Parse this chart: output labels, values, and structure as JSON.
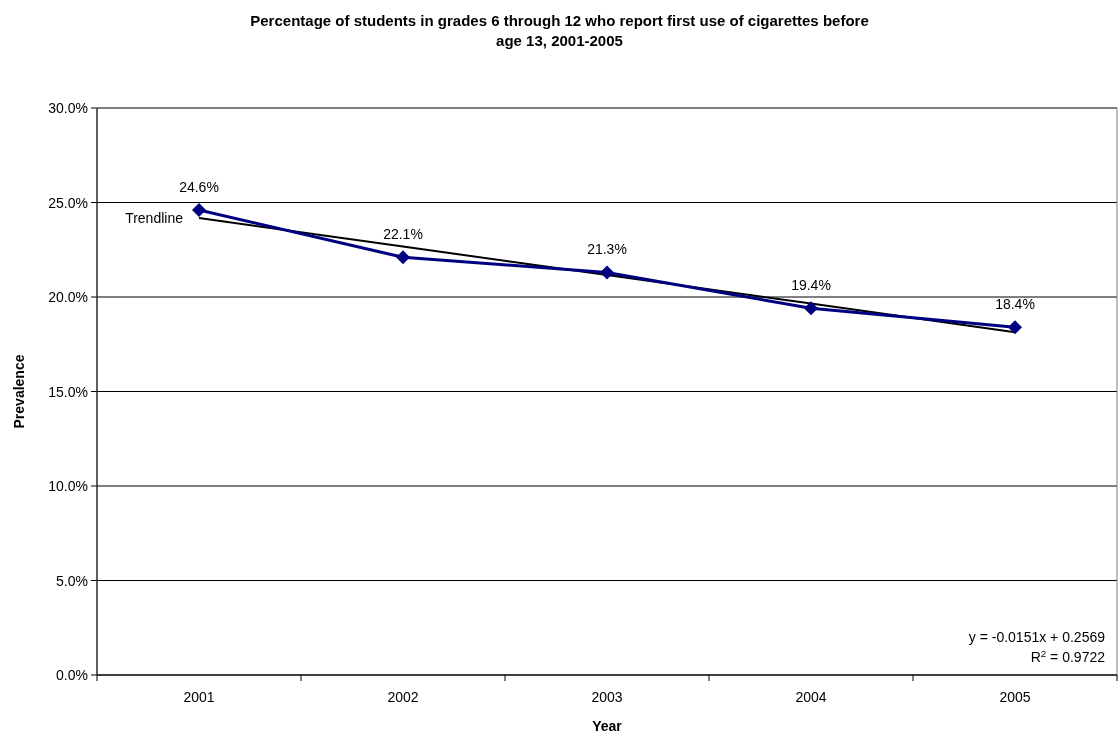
{
  "chart_data": {
    "type": "line",
    "title": "Percentage of students in grades 6 through 12 who report first use of cigarettes before age 13, 2001-2005",
    "xlabel": "Year",
    "ylabel": "Prevalence",
    "categories": [
      "2001",
      "2002",
      "2003",
      "2004",
      "2005"
    ],
    "series": [
      {
        "color": "#000080",
        "values": [
          24.6,
          22.1,
          21.3,
          19.4,
          18.4
        ],
        "marker": "diamond",
        "value_labels": [
          "24.6%",
          "22.1%",
          "21.3%",
          "19.4%",
          "18.4%"
        ]
      },
      {
        "name": "Trendline",
        "type": "line",
        "color": "#000000",
        "marker": "none",
        "values": [
          24.18,
          22.67,
          21.16,
          19.65,
          18.14
        ]
      }
    ],
    "ylim": [
      0,
      30
    ],
    "yticks": [
      {
        "value": 0,
        "label": "0.0%"
      },
      {
        "value": 5,
        "label": "5.0%"
      },
      {
        "value": 10,
        "label": "10.0%"
      },
      {
        "value": 15,
        "label": "15.0%"
      },
      {
        "value": 20,
        "label": "20.0%"
      },
      {
        "value": 25,
        "label": "25.0%"
      },
      {
        "value": 30,
        "label": "30.0%"
      }
    ],
    "grid": "y",
    "annotations": [
      "y = -0.0151x + 0.2569",
      "R$^{2}$ = 0.9722"
    ]
  }
}
